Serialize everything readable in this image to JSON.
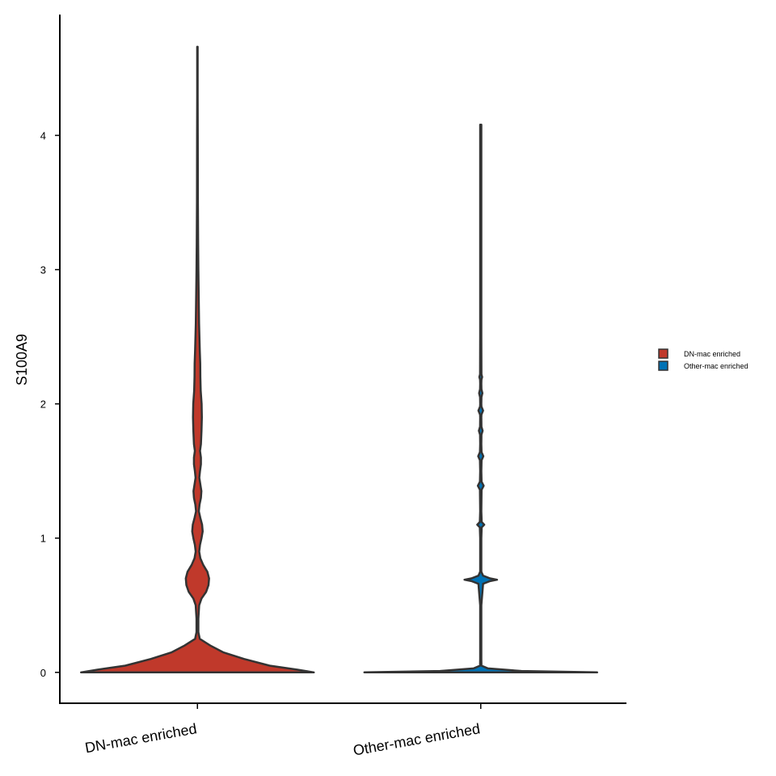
{
  "chart_data": {
    "type": "violin",
    "title": "",
    "xlabel": "",
    "ylabel": "S100A9",
    "ylim": [
      -0.23,
      4.9
    ],
    "yticks": [
      0,
      1,
      2,
      3,
      4
    ],
    "grid": false,
    "legend_position": "right",
    "categories": [
      "DN-mac enriched",
      "Other-mac enriched"
    ],
    "colors": {
      "DN-mac enriched": "#c0392b",
      "Other-mac enriched": "#0072b5",
      "outline": "#333333"
    },
    "series": [
      {
        "name": "DN-mac enriched",
        "max": 4.66,
        "density_y": [
          0,
          0.02,
          0.05,
          0.1,
          0.15,
          0.2,
          0.25,
          0.3,
          0.4,
          0.5,
          0.55,
          0.6,
          0.65,
          0.7,
          0.75,
          0.8,
          0.85,
          0.9,
          0.95,
          1.0,
          1.05,
          1.1,
          1.15,
          1.2,
          1.25,
          1.3,
          1.35,
          1.4,
          1.45,
          1.5,
          1.55,
          1.6,
          1.65,
          1.7,
          1.8,
          1.9,
          2.0,
          2.1,
          2.2,
          2.3,
          2.4,
          2.5,
          2.6,
          2.8,
          3.0,
          3.2,
          3.5,
          4.0,
          4.3,
          4.66
        ],
        "density_w": [
          1.0,
          0.86,
          0.62,
          0.4,
          0.22,
          0.11,
          0.02,
          0.008,
          0.008,
          0.015,
          0.035,
          0.075,
          0.095,
          0.1,
          0.085,
          0.05,
          0.025,
          0.015,
          0.022,
          0.035,
          0.045,
          0.04,
          0.025,
          0.012,
          0.018,
          0.03,
          0.034,
          0.025,
          0.016,
          0.022,
          0.03,
          0.03,
          0.022,
          0.03,
          0.035,
          0.038,
          0.036,
          0.028,
          0.025,
          0.024,
          0.02,
          0.017,
          0.014,
          0.011,
          0.008,
          0.006,
          0.004,
          0.003,
          0.002,
          0.002
        ]
      },
      {
        "name": "Other-mac enriched",
        "max": 4.08,
        "density_y": [
          0,
          0.01,
          0.03,
          0.05,
          0.1,
          0.5,
          0.66,
          0.68,
          0.69,
          0.7,
          0.72,
          0.75,
          1.0,
          1.08,
          1.1,
          1.12,
          1.2,
          1.36,
          1.39,
          1.42,
          1.5,
          1.58,
          1.61,
          1.64,
          1.7,
          1.77,
          1.8,
          1.83,
          1.9,
          1.92,
          1.95,
          1.98,
          2.0,
          2.05,
          2.08,
          2.11,
          2.15,
          2.18,
          2.2,
          2.22,
          2.5,
          4.08
        ],
        "density_w": [
          1.0,
          0.35,
          0.06,
          0.006,
          0.005,
          0.005,
          0.02,
          0.08,
          0.14,
          0.08,
          0.02,
          0.005,
          0.005,
          0.008,
          0.03,
          0.008,
          0.005,
          0.007,
          0.025,
          0.007,
          0.005,
          0.007,
          0.022,
          0.007,
          0.005,
          0.006,
          0.016,
          0.006,
          0.005,
          0.006,
          0.02,
          0.006,
          0.005,
          0.006,
          0.014,
          0.006,
          0.005,
          0.006,
          0.012,
          0.006,
          0.005,
          0.005
        ]
      }
    ]
  }
}
